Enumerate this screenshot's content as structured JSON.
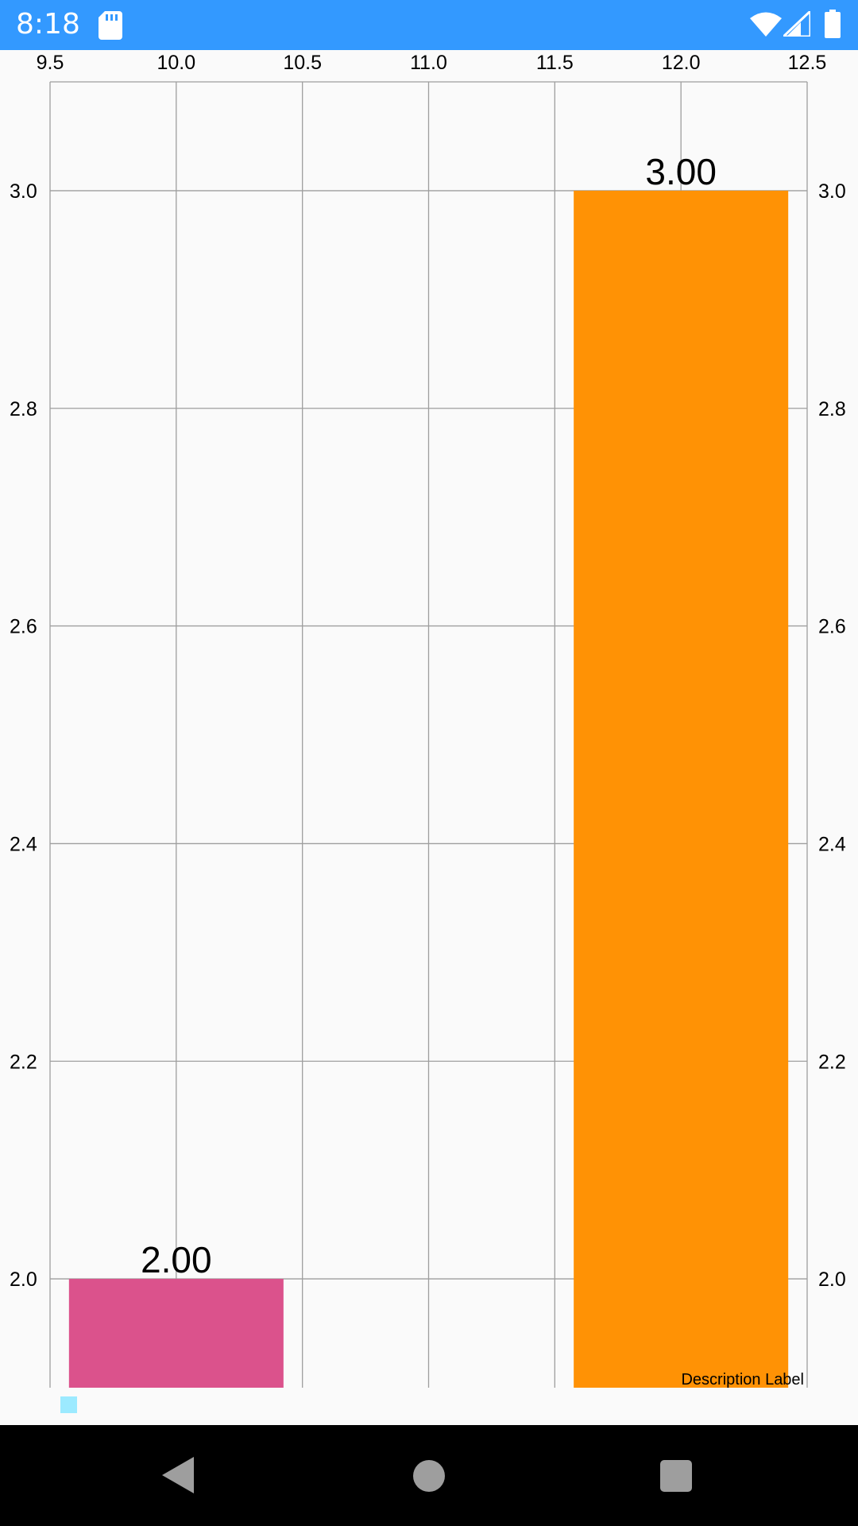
{
  "status_bar": {
    "time": "8:18",
    "background": "#3399ff",
    "icons": [
      "sd-card-icon",
      "wifi-icon",
      "signal-icon",
      "battery-icon"
    ]
  },
  "chart_data": {
    "type": "bar",
    "title": "",
    "xlabel": "",
    "ylabel": "",
    "x_ticks": [
      "9.5",
      "10.0",
      "10.5",
      "11.0",
      "11.5",
      "12.0",
      "12.5"
    ],
    "xlim": [
      9.5,
      12.5
    ],
    "y_ticks": [
      "2.0",
      "2.2",
      "2.4",
      "2.6",
      "2.8",
      "3.0"
    ],
    "ylim": [
      1.9,
      3.1
    ],
    "grid": true,
    "x_axis_position": "top",
    "y_axis_labels": "both",
    "bar_width": 0.85,
    "bars": [
      {
        "x": 10.0,
        "value": 2.0,
        "label": "2.00",
        "color": "#db528c"
      },
      {
        "x": 12.0,
        "value": 3.0,
        "label": "3.00",
        "color": "#ff9205"
      }
    ],
    "legend": [
      {
        "name": "",
        "color": "#9ceaff"
      }
    ],
    "legend_position": "bottom-left",
    "description": "Description Label"
  },
  "nav_bar": {
    "buttons": [
      "back-button",
      "home-button",
      "recents-button"
    ]
  }
}
